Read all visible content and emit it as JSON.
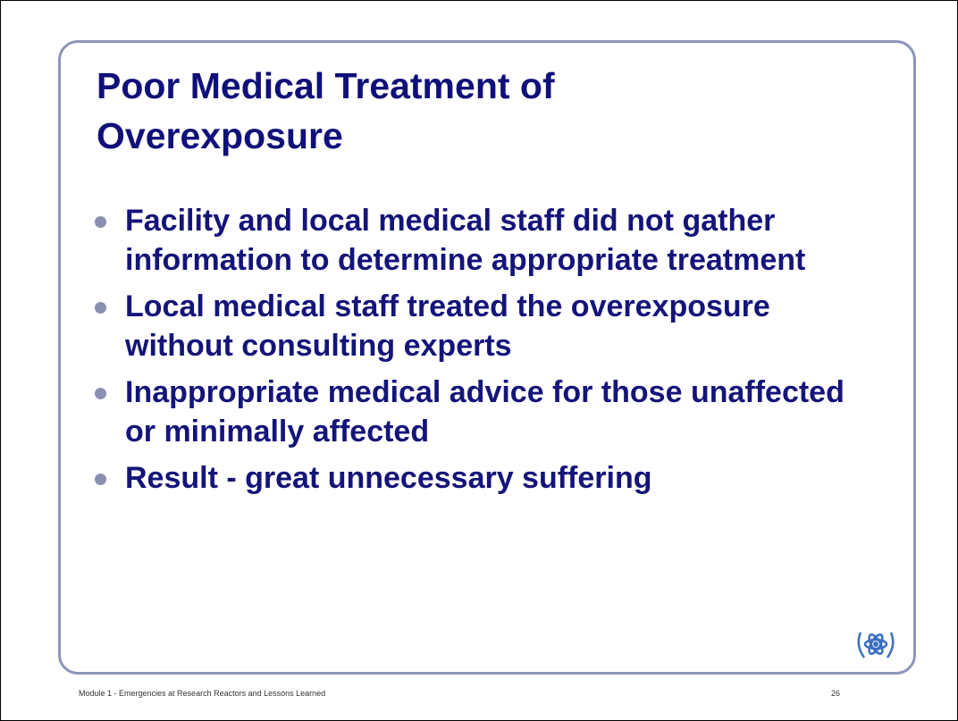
{
  "title": "Poor Medical Treatment of Overexposure",
  "bullets": [
    "Facility and local medical staff did not gather information to determine appropriate treatment",
    "Local medical staff treated the overexposure without consulting experts",
    "Inappropriate medical advice for those unaffected or minimally affected",
    "Result - great unnecessary suffering"
  ],
  "footer": {
    "text": "Module 1 - Emergencies at Research Reactors and Lessons Learned",
    "page": "26"
  }
}
